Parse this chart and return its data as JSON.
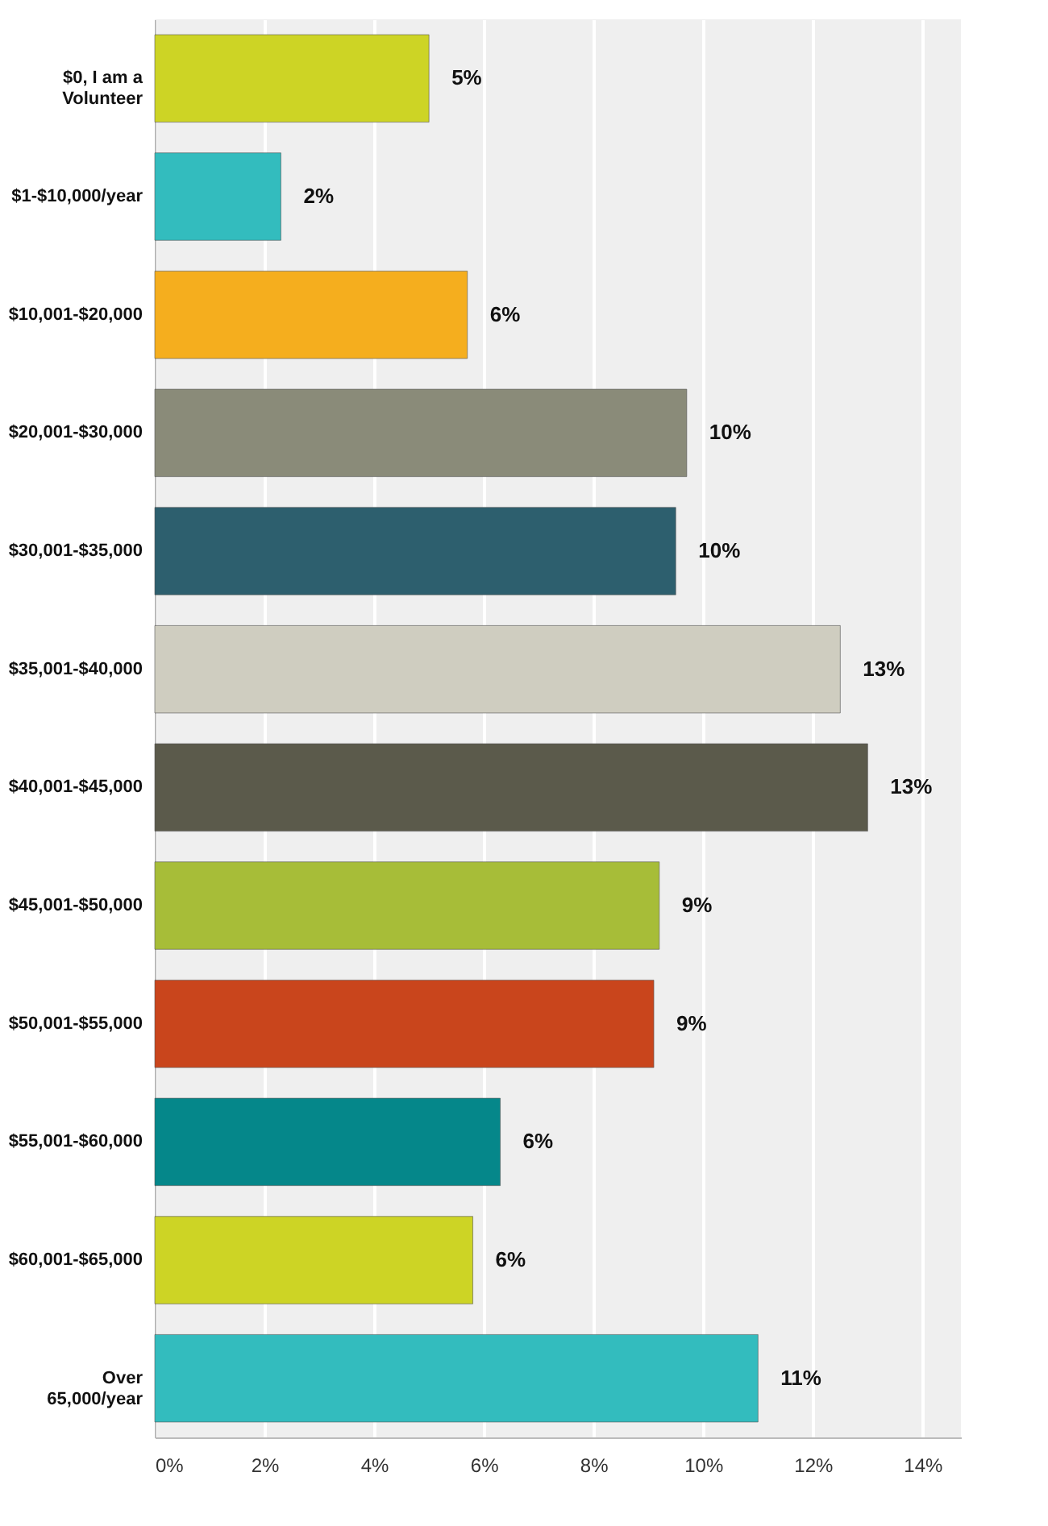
{
  "chart_data": {
    "type": "bar",
    "orientation": "horizontal",
    "categories": [
      "$0, I am a Volunteer",
      "$1-$10,000/year",
      "$10,001-$20,000",
      "$20,001-$30,000",
      "$30,001-$35,000",
      "$35,001-$40,000",
      "$40,001-$45,000",
      "$45,001-$50,000",
      "$50,001-$55,000",
      "$55,001-$60,000",
      "$60,001-$65,000",
      "Over 65,000/year"
    ],
    "values": [
      5.0,
      2.3,
      5.7,
      9.7,
      9.5,
      12.5,
      13.0,
      9.2,
      9.1,
      6.3,
      5.8,
      11.0
    ],
    "colors": [
      "#cdd425",
      "#33bcbe",
      "#f5ae1e",
      "#8a8b79",
      "#2d5f6e",
      "#cfcdc0",
      "#5b5a4b",
      "#a7bd38",
      "#c9451c",
      "#05878a",
      "#cdd425",
      "#33bcbe"
    ],
    "value_labels": [
      "5%",
      "2%",
      "6%",
      "10%",
      "10%",
      "13%",
      "13%",
      "9%",
      "9%",
      "6%",
      "6%",
      "11%"
    ],
    "xlim": [
      0,
      14.7
    ],
    "xticks": [
      {
        "value": 0,
        "label": "0%"
      },
      {
        "value": 2,
        "label": "2%"
      },
      {
        "value": 4,
        "label": "4%"
      },
      {
        "value": 6,
        "label": "6%"
      },
      {
        "value": 8,
        "label": "8%"
      },
      {
        "value": 10,
        "label": "10%"
      },
      {
        "value": 12,
        "label": "12%"
      },
      {
        "value": 14,
        "label": "14%"
      }
    ],
    "grid": "x"
  }
}
